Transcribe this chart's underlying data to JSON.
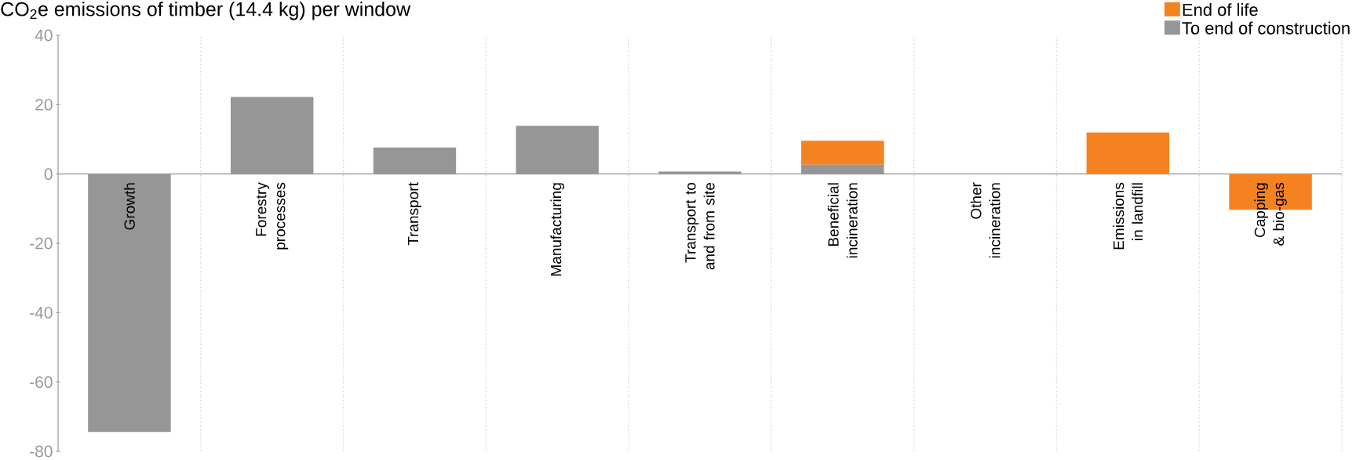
{
  "chart_data": {
    "type": "bar",
    "title": "CO$_{2}$e emissions of timber (14.4 kg) per window",
    "categories": [
      "Growth",
      "Forestry processes",
      "Transport",
      "Manufacturing",
      "Transport to and from site",
      "Beneficial incineration",
      "Other incineration",
      "Emissions in landfill",
      "Capping & bio-gas"
    ],
    "stacked": true,
    "series": [
      {
        "name": "To end of construction",
        "color": "#969696",
        "values": [
          -74.4,
          22.2,
          7.6,
          13.9,
          0.7,
          2.7,
          0,
          0,
          0
        ]
      },
      {
        "name": "End of life",
        "color": "#f58220",
        "values": [
          0,
          0,
          0,
          0,
          0,
          6.9,
          0,
          12,
          -10.3
        ]
      }
    ],
    "ylim": [
      -80,
      40
    ],
    "yticks": [
      -80,
      -60,
      -40,
      -20,
      0,
      20,
      40
    ],
    "grid": "x",
    "legend": "top right"
  }
}
